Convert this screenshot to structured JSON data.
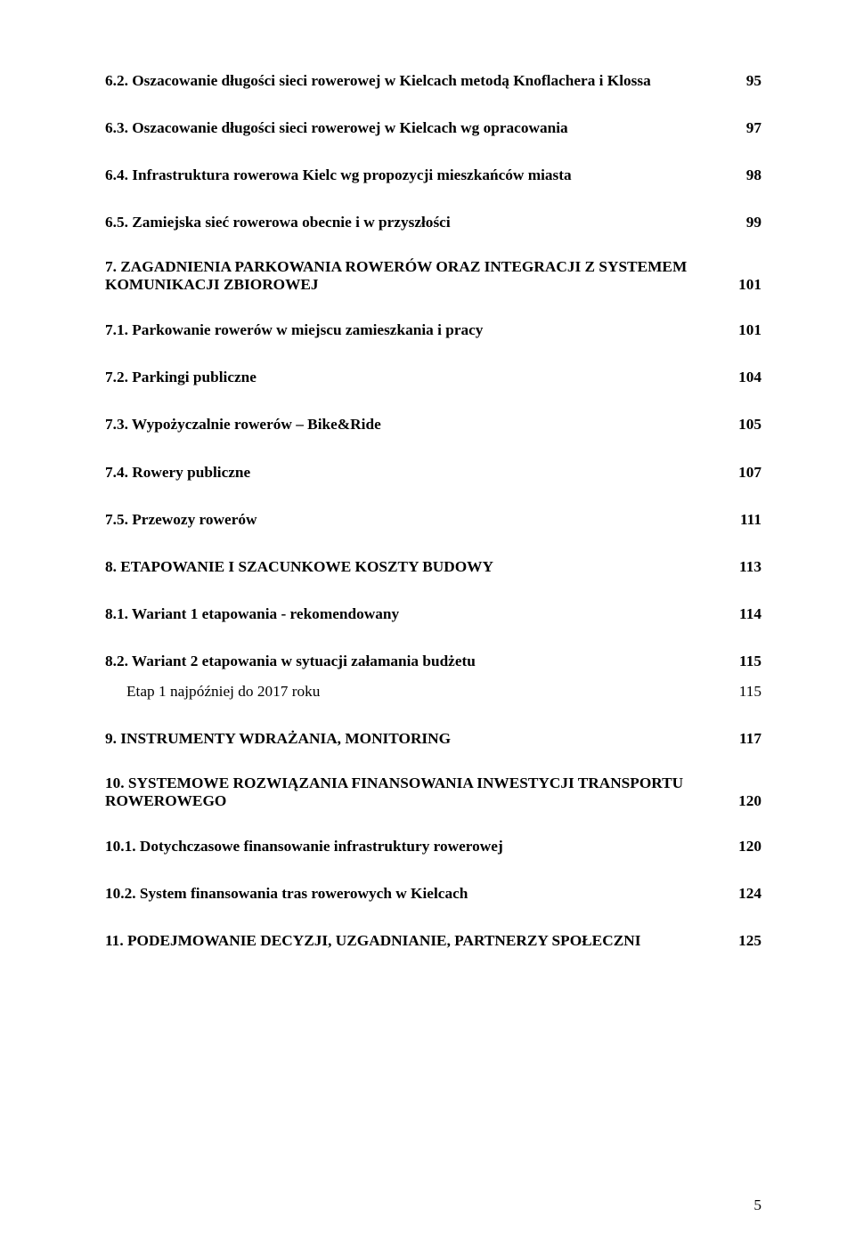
{
  "entries": {
    "e1": {
      "text": "6.2. Oszacowanie długości sieci rowerowej w Kielcach metodą Knoflachera i Klossa",
      "page": "95"
    },
    "e2": {
      "text": "6.3. Oszacowanie długości sieci rowerowej w Kielcach wg opracowania",
      "page": "97"
    },
    "e3": {
      "text": "6.4. Infrastruktura rowerowa Kielc wg propozycji mieszkańców miasta",
      "page": "98"
    },
    "e4": {
      "text": "6.5. Zamiejska sieć rowerowa obecnie i w przyszłości",
      "page": "99"
    },
    "e5a": {
      "text": "7. ZAGADNIENIA PARKOWANIA ROWERÓW ORAZ INTEGRACJI Z SYSTEMEM"
    },
    "e5b": {
      "text": "KOMUNIKACJI ZBIOROWEJ",
      "page": "101"
    },
    "e6": {
      "text": "7.1. Parkowanie rowerów w miejscu zamieszkania i pracy",
      "page": "101"
    },
    "e7": {
      "text": "7.2. Parkingi publiczne",
      "page": "104"
    },
    "e8": {
      "text": "7.3. Wypożyczalnie rowerów – Bike&Ride",
      "page": "105"
    },
    "e9": {
      "text": "7.4. Rowery publiczne",
      "page": "107"
    },
    "e10": {
      "text": "7.5. Przewozy rowerów",
      "page": "111"
    },
    "e11": {
      "text": "8. ETAPOWANIE I SZACUNKOWE KOSZTY BUDOWY",
      "page": "113"
    },
    "e12": {
      "text": "8.1. Wariant 1 etapowania - rekomendowany",
      "page": "114"
    },
    "e13": {
      "text": "8.2. Wariant 2 etapowania w sytuacji załamania budżetu",
      "page": "115"
    },
    "e14": {
      "text": "Etap 1 najpóźniej do 2017 roku",
      "page": "115"
    },
    "e15": {
      "text": "9. INSTRUMENTY WDRAŻANIA, MONITORING",
      "page": "117"
    },
    "e16a": {
      "text": "10. SYSTEMOWE ROZWIĄZANIA FINANSOWANIA INWESTYCJI TRANSPORTU"
    },
    "e16b": {
      "text": "ROWEROWEGO",
      "page": "120"
    },
    "e17": {
      "text": "10.1. Dotychczasowe finansowanie infrastruktury rowerowej",
      "page": "120"
    },
    "e18": {
      "text": "10.2. System finansowania tras rowerowych w Kielcach",
      "page": "124"
    },
    "e19": {
      "text": "11. PODEJMOWANIE DECYZJI, UZGADNIANIE, PARTNERZY SPOŁECZNI",
      "page": "125"
    }
  },
  "pageNumber": "5"
}
